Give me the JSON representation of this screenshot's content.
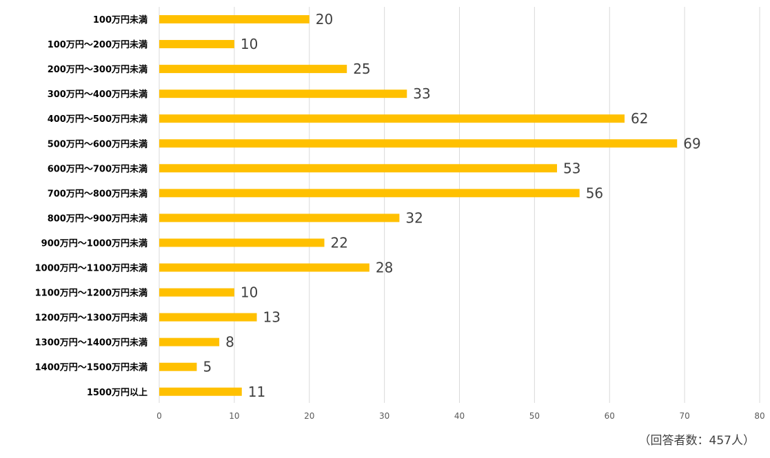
{
  "chart_data": {
    "type": "bar",
    "orientation": "horizontal",
    "categories": [
      "100万円未満",
      "100万円～200万円未満",
      "200万円～300万円未満",
      "300万円～400万円未満",
      "400万円～500万円未満",
      "500万円～600万円未満",
      "600万円～700万円未満",
      "700万円～800万円未満",
      "800万円～900万円未満",
      "900万円～1000万円未満",
      "1000万円～1100万円未満",
      "1100万円～1200万円未満",
      "1200万円～1300万円未満",
      "1300万円～1400万円未満",
      "1400万円～1500万円未満",
      "1500万円以上"
    ],
    "values": [
      20,
      10,
      25,
      33,
      62,
      69,
      53,
      56,
      32,
      22,
      28,
      10,
      13,
      8,
      5,
      11
    ],
    "xlim": [
      0,
      80
    ],
    "ticks": [
      0,
      10,
      20,
      30,
      40,
      50,
      60,
      70,
      80
    ],
    "grid": true,
    "bar_color": "#FFC000",
    "data_labels": true
  },
  "footnote": "（回答者数：457人）"
}
